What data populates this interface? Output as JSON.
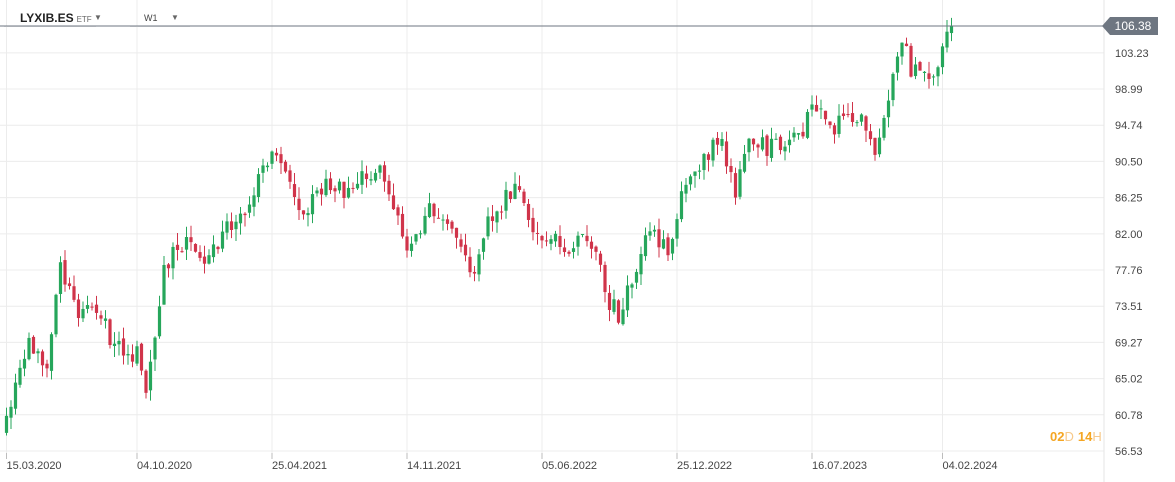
{
  "header": {
    "symbol": "LYXIB.ES",
    "instrument_type": "ETF",
    "timeframe": "W1",
    "dropdown_icon": "caret-down-icon"
  },
  "timer": {
    "days": "02",
    "day_unit": "D",
    "hours": "14",
    "hour_unit": "H"
  },
  "colors": {
    "up": "#26a65b",
    "down": "#d0344a",
    "grid": "#ececec",
    "price_line": "#6e7681",
    "price_tag": "#6e7681",
    "timer": "#f5a623"
  },
  "chart_data": {
    "type": "candlestick",
    "ylim": [
      56.53,
      106.38
    ],
    "grid": true,
    "yticks": [
      "56.53",
      "60.78",
      "65.02",
      "69.27",
      "73.51",
      "77.76",
      "82.00",
      "86.25",
      "90.50",
      "94.74",
      "98.99",
      "103.23"
    ],
    "last_price": "106.38",
    "xticks": [
      "15.03.2020",
      "04.10.2020",
      "25.04.2021",
      "14.11.2021",
      "05.06.2022",
      "25.12.2022",
      "16.07.2023",
      "04.02.2024"
    ],
    "xticks_index": [
      0,
      29,
      59,
      89,
      119,
      149,
      179,
      208
    ],
    "close_path": [
      [
        0,
        60.5
      ],
      [
        5,
        69.5
      ],
      [
        9,
        66.5
      ],
      [
        12,
        78.0
      ],
      [
        16,
        72.0
      ],
      [
        20,
        73.5
      ],
      [
        24,
        68.5
      ],
      [
        29,
        67.8
      ],
      [
        31,
        63.0
      ],
      [
        35,
        78.0
      ],
      [
        40,
        81.5
      ],
      [
        44,
        79.0
      ],
      [
        48,
        82.0
      ],
      [
        53,
        84.5
      ],
      [
        58,
        91.0
      ],
      [
        62,
        90.0
      ],
      [
        66,
        84.5
      ],
      [
        70,
        87.5
      ],
      [
        75,
        87.0
      ],
      [
        80,
        89.5
      ],
      [
        84,
        89.0
      ],
      [
        89,
        80.0
      ],
      [
        94,
        85.0
      ],
      [
        99,
        82.0
      ],
      [
        104,
        77.0
      ],
      [
        107,
        83.0
      ],
      [
        113,
        88.0
      ],
      [
        118,
        81.0
      ],
      [
        121,
        82.0
      ],
      [
        124,
        79.0
      ],
      [
        128,
        83.0
      ],
      [
        131,
        80.0
      ],
      [
        133,
        75.0
      ],
      [
        136,
        72.5
      ],
      [
        139,
        77.0
      ],
      [
        143,
        82.0
      ],
      [
        147,
        80.0
      ],
      [
        151,
        88.0
      ],
      [
        155,
        91.0
      ],
      [
        159,
        93.5
      ],
      [
        162,
        86.0
      ],
      [
        165,
        93.5
      ],
      [
        169,
        92.0
      ],
      [
        173,
        93.0
      ],
      [
        177,
        94.5
      ],
      [
        180,
        97.0
      ],
      [
        184,
        94.5
      ],
      [
        189,
        96.0
      ],
      [
        193,
        92.0
      ],
      [
        196,
        97.0
      ],
      [
        199,
        105.0
      ],
      [
        201,
        101.0
      ],
      [
        206,
        100.5
      ],
      [
        210,
        106.38
      ]
    ]
  }
}
